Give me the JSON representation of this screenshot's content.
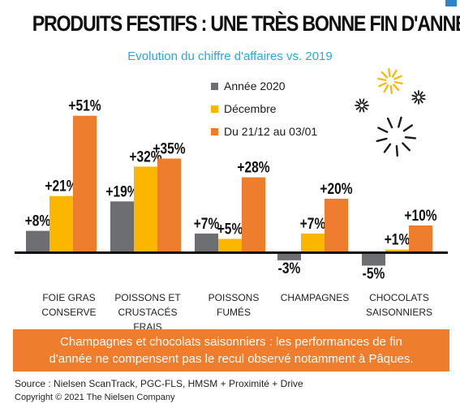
{
  "title": "PRODUITS FESTIFS : UNE TRÈS BONNE FIN D'ANNÉE",
  "subtitle": "Evolution du chiffre d'affaires vs. 2019",
  "banner": {
    "line1": "Champagnes et chocolats saisonniers : les performances de fin",
    "line2": "d'année ne compensent pas le recul observé notamment à Pâques."
  },
  "source": "Source : Nielsen ScanTrack, PGC-FLS, HMSM + Proximité + Drive",
  "copyright": "Copyright © 2021 The Nielsen Company",
  "colors": {
    "annee_2020": "#6d6e71",
    "decembre": "#fbb600",
    "periode": "#ef7d2e",
    "banner": "#ef7d2e",
    "subtitle": "#2aa8d8",
    "firework_gold": "#fbb600",
    "firework_dark": "#1a1a1a"
  },
  "decoration": {
    "fireworks_icon": "fireworks-icon"
  },
  "chart_data": {
    "type": "bar",
    "title": "PRODUITS FESTIFS : UNE TRÈS BONNE FIN D'ANNÉE",
    "subtitle": "Evolution du chiffre d'affaires vs. 2019",
    "categories": [
      [
        "FOIE GRAS",
        "CONSERVE"
      ],
      [
        "POISSONS ET",
        "CRUSTACÉS",
        "FRAIS"
      ],
      [
        "POISSONS",
        "FUMÉS"
      ],
      [
        "CHAMPAGNES"
      ],
      [
        "CHOCOLATS",
        "SAISONNIERS"
      ]
    ],
    "series": [
      {
        "name": "Année 2020",
        "values": [
          8,
          19,
          7,
          -3,
          -5
        ],
        "labels": [
          "+8%",
          "+19%",
          "+7%",
          "-3%",
          "-5%"
        ]
      },
      {
        "name": "Décembre",
        "values": [
          21,
          32,
          5,
          7,
          1
        ],
        "labels": [
          "+21%",
          "+32%",
          "+5%",
          "+7%",
          "+1%"
        ]
      },
      {
        "name": "Du 21/12 au 03/01",
        "values": [
          51,
          35,
          28,
          20,
          10
        ],
        "labels": [
          "+51%",
          "+35%",
          "+28%",
          "+20%",
          "+10%"
        ]
      }
    ],
    "ylim": [
      -6,
      55
    ],
    "grid": false,
    "legend_position": "top-center",
    "unit": "%"
  }
}
